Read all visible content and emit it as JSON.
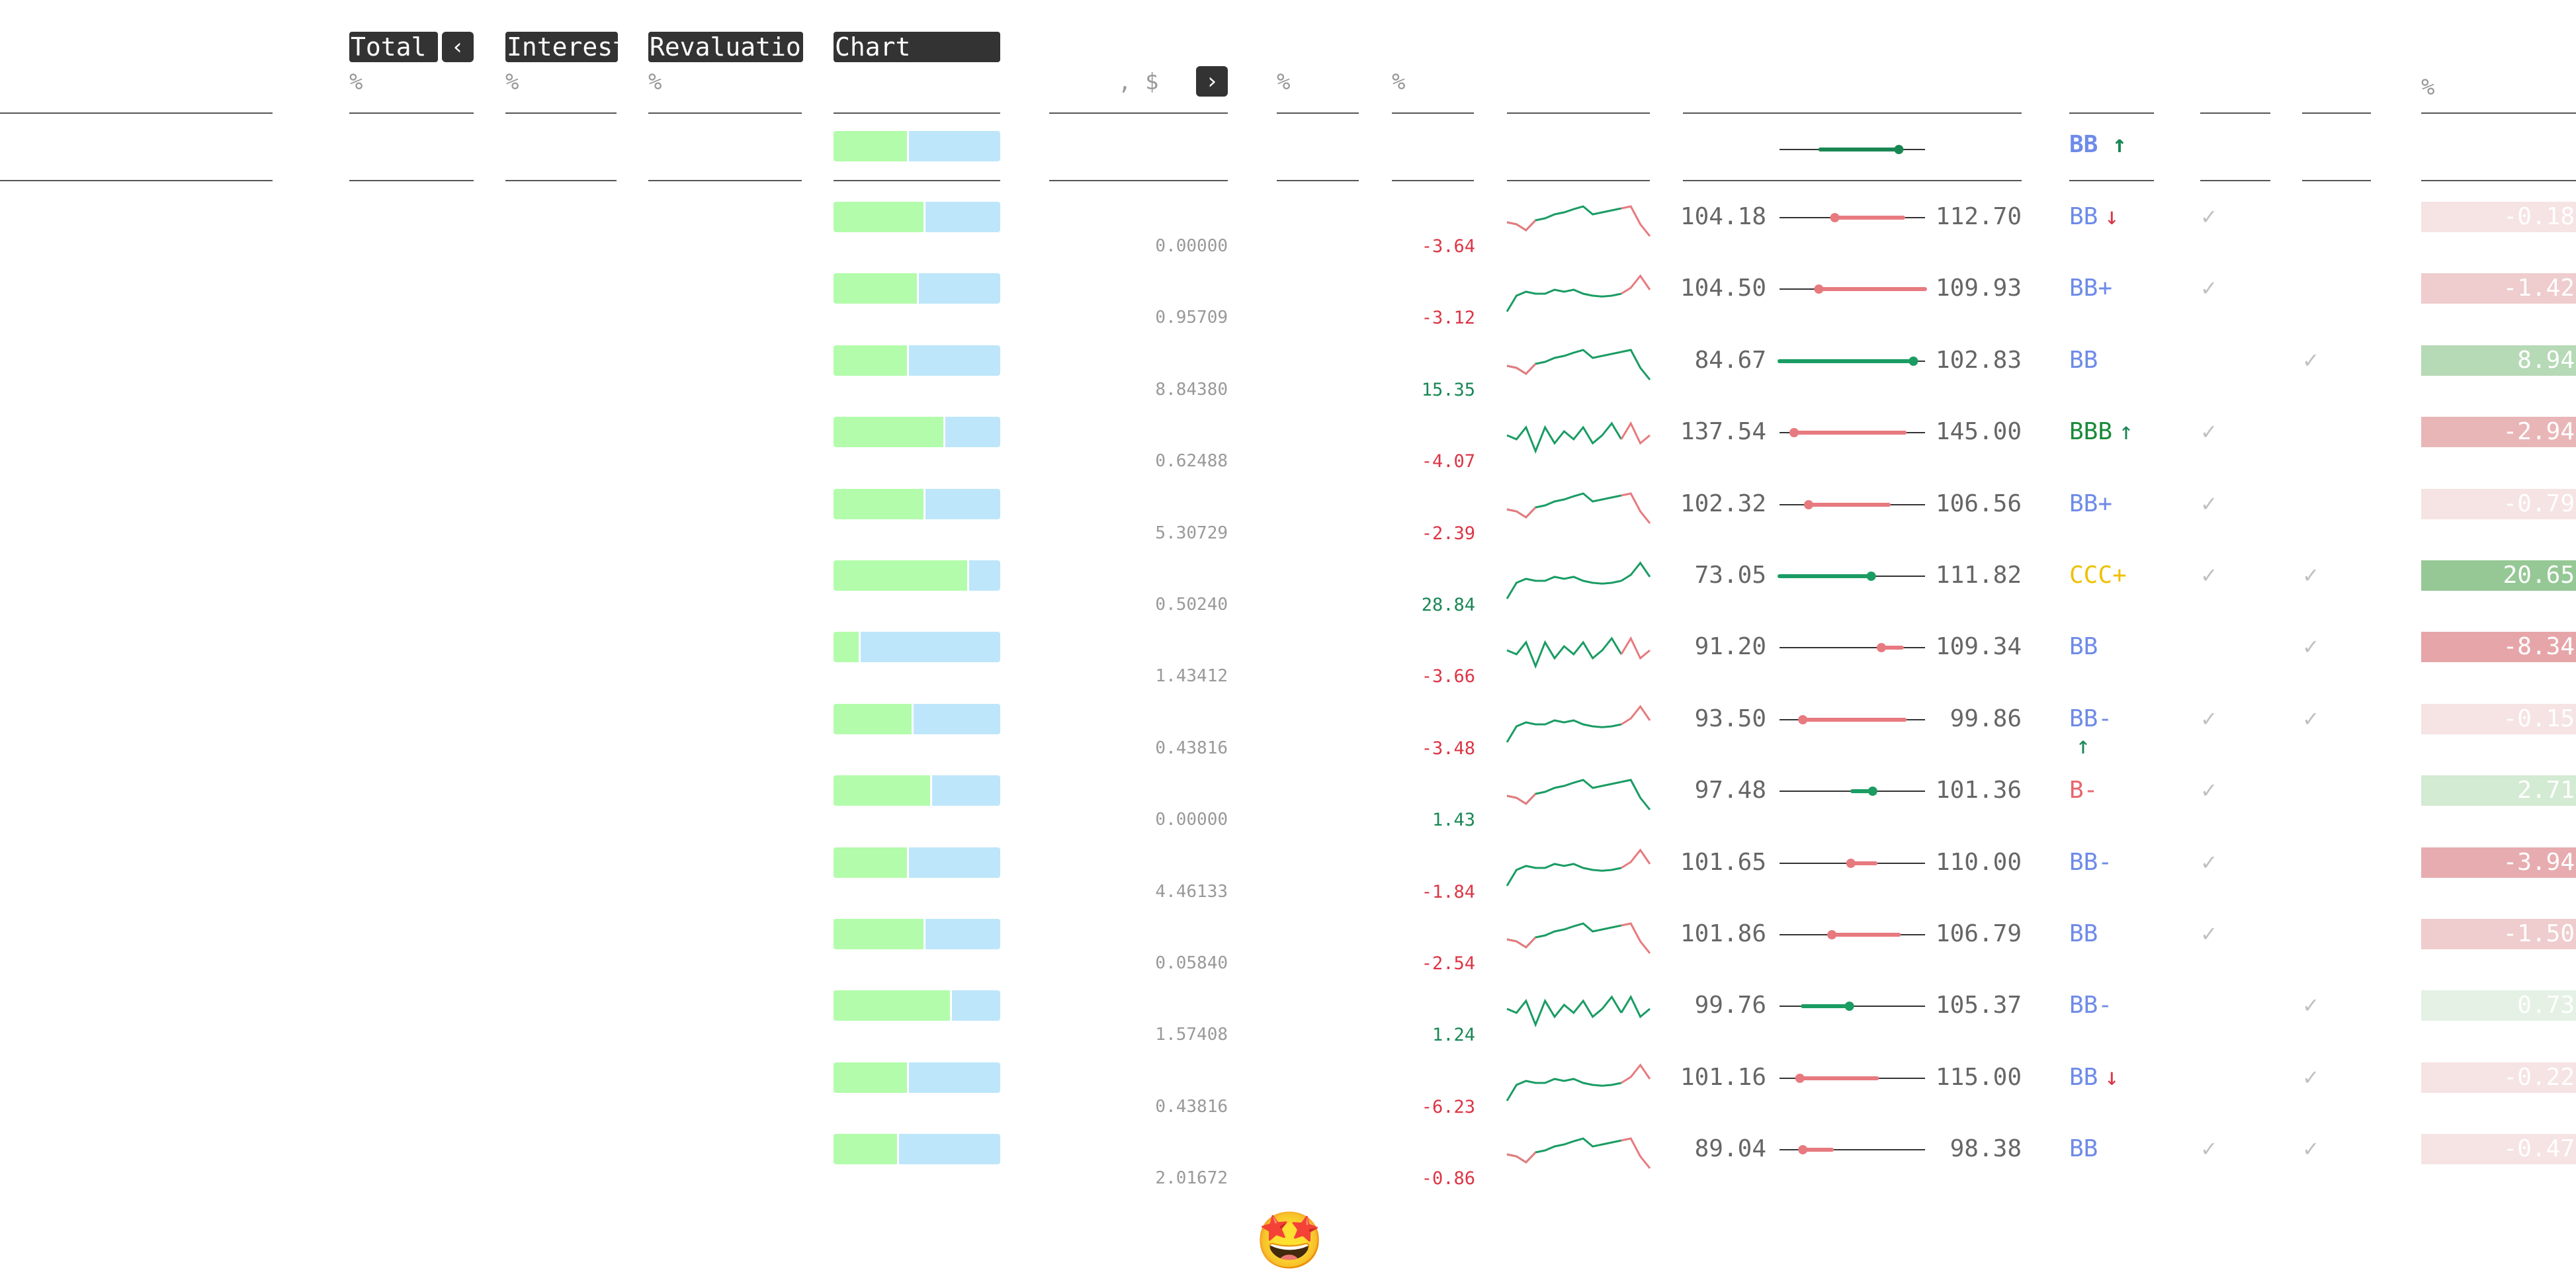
{
  "header": {
    "total_label": "Total",
    "interest_label": "Interest",
    "revaluation_label": "Revaluation",
    "chart_label": "Chart",
    "prev_icon": "‹",
    "next_icon": "›",
    "units": {
      "total": "%",
      "interest": "%",
      "revaluation": "%",
      "amount": ", $",
      "col_a": "%",
      "col_b": "%",
      "pct": "%"
    }
  },
  "summary": {
    "green_fraction": 0.44,
    "range_low_frac": 0.28,
    "range_high_frac": 0.82,
    "range_color": "#198754",
    "rating": "BB",
    "rating_trend": "↑",
    "rating_color": "#6e8be8",
    "trend_color": "#198754"
  },
  "colors": {
    "neg": "#dc3545",
    "pos": "#198754",
    "range_neg": "#e77a7f",
    "range_pos": "#1a9c63",
    "bar_green": "#b3fcab",
    "bar_blue": "#bde6fa"
  },
  "rows": [
    {
      "green": 0.54,
      "amount": "0.00000",
      "change": "-3.64",
      "spark": "A",
      "low": "104.18",
      "low_frac": 0.38,
      "high": "112.70",
      "high_frac": 0.85,
      "rating": "BB",
      "trend": "↓",
      "rating_color": "#6e8be8",
      "trend_color": "#dc3545",
      "c1": true,
      "c2": false,
      "pct": "-0.18",
      "pct_color": "#f6e3e4",
      "pct_text": "#fff"
    },
    {
      "green": 0.5,
      "amount": "0.95709",
      "change": "-3.12",
      "spark": "B",
      "low": "104.50",
      "low_frac": 0.27,
      "high": "109.93",
      "high_frac": 1.0,
      "rating": "BB+",
      "trend": "",
      "rating_color": "#6e8be8",
      "trend_color": "#6e8be8",
      "c1": true,
      "c2": false,
      "pct": "-1.42",
      "pct_color": "#efcccd",
      "pct_text": "#fff"
    },
    {
      "green": 0.44,
      "amount": "8.84380",
      "change": "15.35",
      "spark": "A",
      "low": "84.67",
      "low_frac": 0.0,
      "high": "102.83",
      "high_frac": 0.92,
      "rating": "BB",
      "trend": "",
      "rating_color": "#6e8be8",
      "trend_color": "#6e8be8",
      "c1": false,
      "c2": true,
      "pct": "8.94",
      "pct_color": "#b6d9b6",
      "pct_text": "#fff"
    },
    {
      "green": 0.66,
      "amount": "0.62488",
      "change": "-4.07",
      "spark": "C",
      "low": "137.54",
      "low_frac": 0.1,
      "high": "145.00",
      "high_frac": 0.86,
      "rating": "BBB",
      "trend": "↑",
      "rating_color": "#1a8a3a",
      "trend_color": "#198754",
      "c1": true,
      "c2": false,
      "pct": "-2.94",
      "pct_color": "#e9b6b8",
      "pct_text": "#fff"
    },
    {
      "green": 0.54,
      "amount": "5.30729",
      "change": "-2.39",
      "spark": "A",
      "low": "102.32",
      "low_frac": 0.2,
      "high": "106.56",
      "high_frac": 0.75,
      "rating": "BB+",
      "trend": "",
      "rating_color": "#6e8be8",
      "trend_color": "#6e8be8",
      "c1": true,
      "c2": false,
      "pct": "-0.79",
      "pct_color": "#f6e3e4",
      "pct_text": "#fff"
    },
    {
      "green": 0.8,
      "amount": "0.50240",
      "change": "28.84",
      "spark": "B",
      "low": "73.05",
      "low_frac": 0.0,
      "high": "111.82",
      "high_frac": 0.63,
      "rating": "CCC+",
      "trend": "",
      "rating_color": "#f0c000",
      "trend_color": "#f0c000",
      "c1": true,
      "c2": true,
      "pct": "20.65",
      "pct_color": "#95c895",
      "pct_text": "#fff"
    },
    {
      "green": 0.15,
      "amount": "1.43412",
      "change": "-3.66",
      "spark": "C",
      "low": "91.20",
      "low_frac": 0.7,
      "high": "109.34",
      "high_frac": 0.84,
      "rating": "BB",
      "trend": "",
      "rating_color": "#6e8be8",
      "trend_color": "#6e8be8",
      "c1": false,
      "c2": true,
      "pct": "-8.34",
      "pct_color": "#e6a6a9",
      "pct_text": "#fff"
    },
    {
      "green": 0.47,
      "amount": "0.43816",
      "change": "-3.48",
      "spark": "B",
      "low": "93.50",
      "low_frac": 0.16,
      "high": "99.86",
      "high_frac": 0.86,
      "rating": "BB-",
      "trend": "↑",
      "rating_color": "#6e8be8",
      "trend_color": "#198754",
      "c1": true,
      "c2": true,
      "pct": "-0.15",
      "pct_color": "#f6e3e4",
      "pct_text": "#fff"
    },
    {
      "green": 0.58,
      "amount": "0.00000",
      "change": "1.43",
      "spark": "A",
      "low": "97.48",
      "low_frac": 0.5,
      "high": "101.36",
      "high_frac": 0.64,
      "rating": "B-",
      "trend": "",
      "rating_color": "#e8666d",
      "trend_color": "#e8666d",
      "c1": true,
      "c2": false,
      "pct": "2.71",
      "pct_color": "#d3ead3",
      "pct_text": "#fff"
    },
    {
      "green": 0.44,
      "amount": "4.46133",
      "change": "-1.84",
      "spark": "B",
      "low": "101.65",
      "low_frac": 0.49,
      "high": "110.00",
      "high_frac": 0.66,
      "rating": "BB-",
      "trend": "",
      "rating_color": "#6e8be8",
      "trend_color": "#6e8be8",
      "c1": true,
      "c2": false,
      "pct": "-3.94",
      "pct_color": "#e7acaf",
      "pct_text": "#fff"
    },
    {
      "green": 0.54,
      "amount": "0.05840",
      "change": "-2.54",
      "spark": "A",
      "low": "101.86",
      "low_frac": 0.36,
      "high": "106.79",
      "high_frac": 0.82,
      "rating": "BB",
      "trend": "",
      "rating_color": "#6e8be8",
      "trend_color": "#6e8be8",
      "c1": true,
      "c2": false,
      "pct": "-1.50",
      "pct_color": "#efcccd",
      "pct_text": "#fff"
    },
    {
      "green": 0.7,
      "amount": "1.57408",
      "change": "1.24",
      "spark": "C",
      "low": "99.76",
      "low_frac": 0.16,
      "high": "105.37",
      "high_frac": 0.48,
      "rating": "BB-",
      "trend": "",
      "rating_color": "#6e8be8",
      "trend_color": "#6e8be8",
      "c1": false,
      "c2": true,
      "pct": "0.73",
      "pct_color": "#e4f1e4",
      "pct_text": "#fff"
    },
    {
      "green": 0.44,
      "amount": "0.43816",
      "change": "-6.23",
      "spark": "B",
      "low": "101.16",
      "low_frac": 0.14,
      "high": "115.00",
      "high_frac": 0.67,
      "rating": "BB",
      "trend": "↓",
      "rating_color": "#6e8be8",
      "trend_color": "#dc3545",
      "c1": false,
      "c2": true,
      "pct": "-0.22",
      "pct_color": "#f6e3e4",
      "pct_text": "#fff"
    },
    {
      "green": 0.38,
      "amount": "2.01672",
      "change": "-0.86",
      "spark": "A",
      "low": "89.04",
      "low_frac": 0.16,
      "high": "98.38",
      "high_frac": 0.36,
      "rating": "BB",
      "trend": "",
      "rating_color": "#6e8be8",
      "trend_color": "#6e8be8",
      "c1": true,
      "c2": true,
      "pct": "-0.47",
      "pct_color": "#f6e3e4",
      "pct_text": "#fff"
    }
  ],
  "check_glyph": "✓",
  "footer_emoji": "🤩",
  "footer_emoji_name": "star-struck-emoji-icon"
}
